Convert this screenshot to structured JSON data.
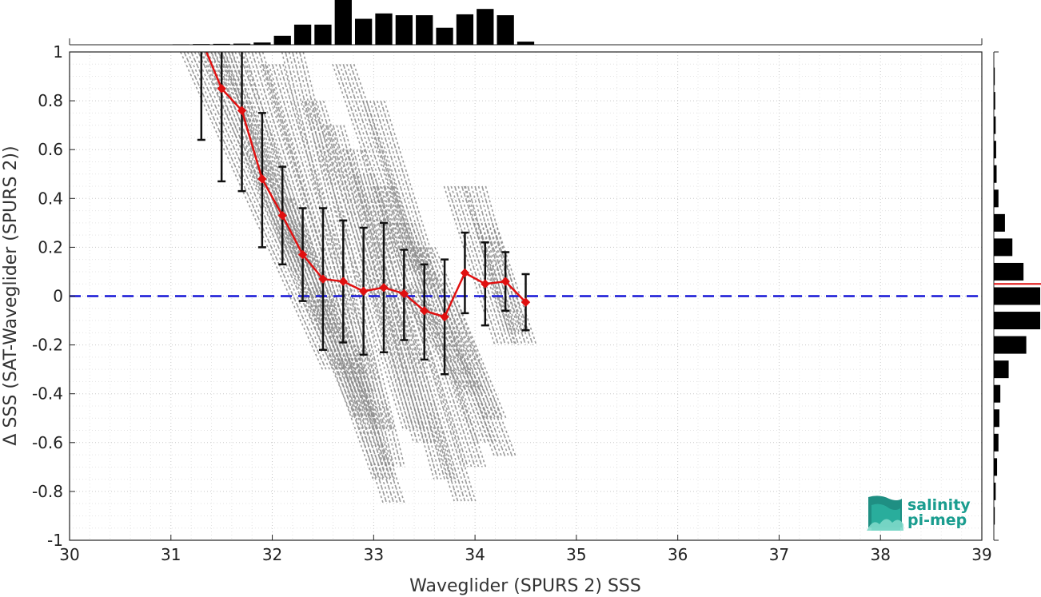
{
  "chart_data": {
    "type": "scatter",
    "xlabel": "Waveglider (SPURS 2) SSS",
    "ylabel": "Δ SSS (SAT-Waveglider (SPURS 2))",
    "xlim": [
      30,
      39
    ],
    "ylim": [
      -1,
      1
    ],
    "xticks": [
      30,
      31,
      32,
      33,
      34,
      35,
      36,
      37,
      38,
      39
    ],
    "yticks": [
      -1,
      -0.8,
      -0.6,
      -0.4,
      -0.2,
      0,
      0.2,
      0.4,
      0.6,
      0.8,
      1
    ],
    "ytick_labels": [
      "-1",
      "-0.8",
      "-0.6",
      "-0.4",
      "-0.2",
      "0",
      "0.2",
      "0.4",
      "0.6",
      "0.8",
      "1"
    ],
    "grid": true,
    "reference_line": {
      "y": 0,
      "color": "#1515d6",
      "style": "dashed"
    },
    "scatter_streaks": [
      {
        "x0": 31.2,
        "y0": 1.0,
        "x1": 32.6,
        "y1": -0.3
      },
      {
        "x0": 31.4,
        "y0": 1.0,
        "x1": 32.9,
        "y1": -0.5
      },
      {
        "x0": 31.6,
        "y0": 1.0,
        "x1": 33.1,
        "y1": -0.75
      },
      {
        "x0": 31.8,
        "y0": 1.0,
        "x1": 33.2,
        "y1": -0.85
      },
      {
        "x0": 32.0,
        "y0": 0.95,
        "x1": 33.1,
        "y1": -0.55
      },
      {
        "x0": 32.2,
        "y0": 1.0,
        "x1": 33.2,
        "y1": -0.7
      },
      {
        "x0": 32.4,
        "y0": 0.8,
        "x1": 33.4,
        "y1": -0.55
      },
      {
        "x0": 32.6,
        "y0": 0.7,
        "x1": 33.5,
        "y1": -0.6
      },
      {
        "x0": 32.8,
        "y0": 0.6,
        "x1": 33.7,
        "y1": -0.75
      },
      {
        "x0": 32.9,
        "y0": 0.5,
        "x1": 33.9,
        "y1": -0.84
      },
      {
        "x0": 33.1,
        "y0": 0.45,
        "x1": 34.0,
        "y1": -0.7
      },
      {
        "x0": 33.3,
        "y0": 0.3,
        "x1": 34.1,
        "y1": -0.6
      },
      {
        "x0": 33.5,
        "y0": 0.2,
        "x1": 34.2,
        "y1": -0.5
      },
      {
        "x0": 33.8,
        "y0": 0.45,
        "x1": 34.3,
        "y1": -0.2
      },
      {
        "x0": 34.0,
        "y0": 0.45,
        "x1": 34.4,
        "y1": -0.15
      },
      {
        "x0": 34.1,
        "y0": 0.3,
        "x1": 34.5,
        "y1": -0.2
      },
      {
        "x0": 31.5,
        "y0": 1.0,
        "x1": 32.3,
        "y1": 0.1
      },
      {
        "x0": 32.1,
        "y0": 0.4,
        "x1": 32.9,
        "y1": -0.4
      },
      {
        "x0": 33.3,
        "y0": 0.05,
        "x1": 34.0,
        "y1": -0.4
      },
      {
        "x0": 33.7,
        "y0": 0.0,
        "x1": 34.3,
        "y1": -0.66
      },
      {
        "x0": 32.7,
        "y0": 0.95,
        "x1": 33.4,
        "y1": 0.1
      },
      {
        "x0": 33.0,
        "y0": 0.8,
        "x1": 33.6,
        "y1": 0.0
      }
    ],
    "mean_series": {
      "color": "#e01010",
      "x": [
        31.5,
        31.7,
        31.9,
        32.1,
        32.3,
        32.5,
        32.7,
        32.9,
        33.1,
        33.3,
        33.5,
        33.7,
        33.9,
        34.1,
        34.3,
        34.5
      ],
      "y": [
        0.85,
        0.76,
        0.48,
        0.33,
        0.17,
        0.07,
        0.06,
        0.02,
        0.035,
        0.01,
        -0.06,
        -0.085,
        0.095,
        0.05,
        0.06,
        -0.025
      ]
    },
    "error_bars": {
      "color": "#111111",
      "x": [
        31.3,
        31.5,
        31.7,
        31.9,
        32.1,
        32.3,
        32.5,
        32.7,
        32.9,
        33.1,
        33.3,
        33.5,
        33.7,
        33.9,
        34.1,
        34.3,
        34.5
      ],
      "low": [
        0.64,
        0.47,
        0.43,
        0.2,
        0.13,
        -0.02,
        -0.22,
        -0.19,
        -0.24,
        -0.23,
        -0.18,
        -0.26,
        -0.32,
        -0.07,
        -0.12,
        -0.06,
        -0.14
      ],
      "high": [
        1.0,
        1.0,
        1.0,
        0.75,
        0.53,
        0.36,
        0.36,
        0.31,
        0.28,
        0.3,
        0.19,
        0.13,
        0.15,
        0.26,
        0.22,
        0.18,
        0.09
      ]
    },
    "top_histogram": {
      "bin_centers": [
        31.1,
        31.3,
        31.5,
        31.7,
        31.9,
        32.1,
        32.3,
        32.5,
        32.7,
        32.9,
        33.1,
        33.3,
        33.5,
        33.7,
        33.9,
        34.1,
        34.3,
        34.5
      ],
      "values": [
        0.01,
        0.015,
        0.02,
        0.025,
        0.05,
        0.2,
        0.45,
        0.45,
        1.0,
        0.58,
        0.7,
        0.66,
        0.66,
        0.38,
        0.68,
        0.8,
        0.66,
        0.07
      ]
    },
    "right_histogram": {
      "bin_centers": [
        0.9,
        0.8,
        0.7,
        0.6,
        0.5,
        0.4,
        0.3,
        0.2,
        0.1,
        0.0,
        -0.1,
        -0.2,
        -0.3,
        -0.4,
        -0.5,
        -0.6,
        -0.7,
        -0.8,
        -0.9
      ],
      "values": [
        0.02,
        0.03,
        0.04,
        0.05,
        0.06,
        0.1,
        0.24,
        0.4,
        0.64,
        1.0,
        1.0,
        0.7,
        0.32,
        0.14,
        0.12,
        0.1,
        0.07,
        0.04,
        0.02
      ],
      "mean_line": {
        "y": 0.05,
        "color": "#e01010"
      }
    }
  },
  "logo": {
    "line1": "salinity",
    "line2": "pi-mep",
    "color": "#1a9d8f"
  }
}
